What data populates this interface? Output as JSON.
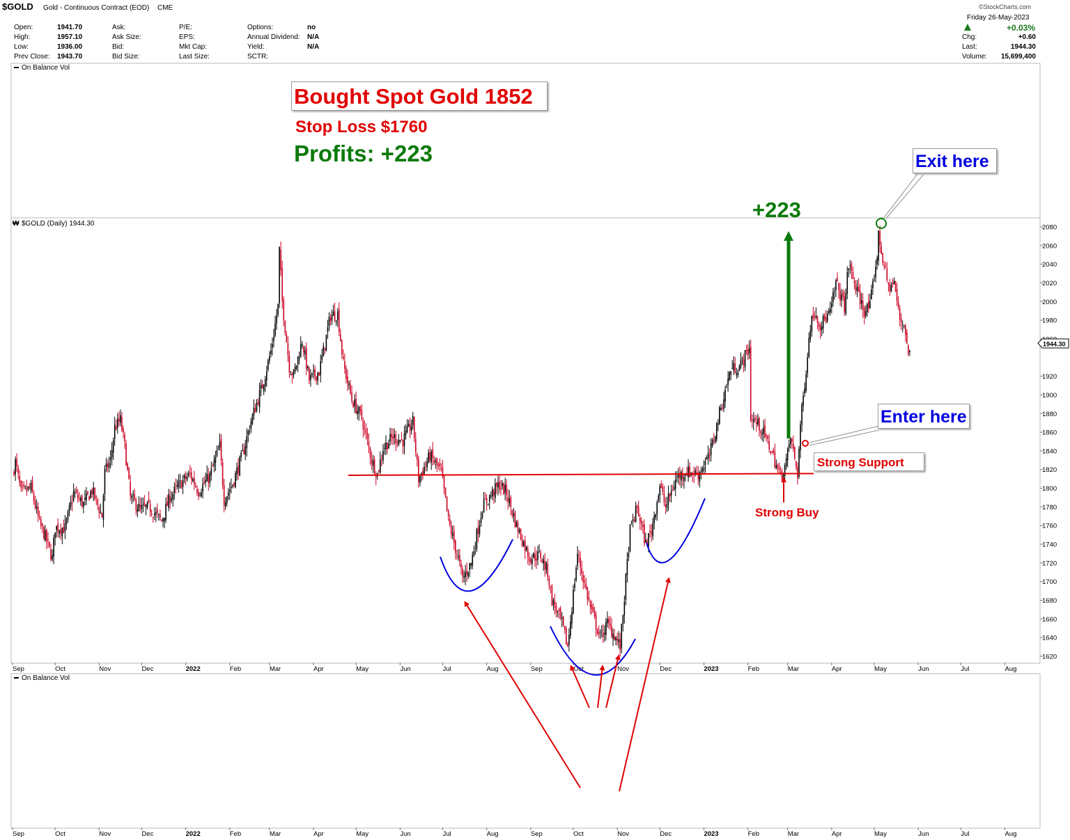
{
  "header": {
    "symbol": "$GOLD",
    "description": "Gold - Continuous Contract (EOD)",
    "exchange": "CME",
    "watermark": "©StockCharts.com",
    "date": "Friday  26-May-2023",
    "pct_change": "+0.03%",
    "quote": [
      {
        "label": "Open:",
        "value": "1941.70"
      },
      {
        "label": "High:",
        "value": "1957.10"
      },
      {
        "label": "Low:",
        "value": "1936.00"
      },
      {
        "label": "Prev Close:",
        "value": "1943.70"
      }
    ],
    "ask_col": [
      "Ask:",
      "Ask Size:",
      "Bid:",
      "Bid Size:"
    ],
    "pe_col": [
      "P/E:",
      "EPS:",
      "Mkt Cap:",
      "Last Size:"
    ],
    "options_col": [
      {
        "label": "Options:",
        "value": "no"
      },
      {
        "label": "Annual Dividend:",
        "value": "N/A"
      },
      {
        "label": "Yield:",
        "value": "N/A"
      },
      {
        "label": "SCTR:",
        "value": ""
      }
    ],
    "right_col": [
      {
        "label": "Chg:",
        "value": "+0.60"
      },
      {
        "label": "Last:",
        "value": "1944.30"
      },
      {
        "label": "Volume:",
        "value": "15,699,400"
      }
    ]
  },
  "panels": {
    "top_indicator": "On Balance Vol",
    "price_legend": "$GOLD (Daily) 1944.30",
    "bottom_indicator": "On Balance Vol"
  },
  "annotations": {
    "bought": "Bought Spot Gold 1852",
    "stop_loss": "Stop Loss $1760",
    "profits": "Profits: +223",
    "gain": "+223",
    "exit": "Exit here",
    "enter": "Enter here",
    "support": "Strong Support",
    "strong_buy": "Strong Buy"
  },
  "colors": {
    "up_candle": "#000000",
    "down_candle": "#cc0022",
    "annotation_red": "#e00000",
    "annotation_green": "#0a7a0a",
    "annotation_blue": "#0000e0",
    "support_line": "#e00000"
  },
  "chart_data": {
    "type": "line",
    "style": "daily candlesticks",
    "x_tick_labels": [
      "Sep",
      "Oct",
      "Nov",
      "Dec",
      "2022",
      "Feb",
      "Mar",
      "Apr",
      "May",
      "Jun",
      "Jul",
      "Aug",
      "Sep",
      "Oct",
      "Nov",
      "Dec",
      "2023",
      "Feb",
      "Mar",
      "Apr",
      "May",
      "Jun",
      "Jul",
      "Aug"
    ],
    "y_tick_labels": [
      "1620",
      "1640",
      "1660",
      "1680",
      "1700",
      "1720",
      "1740",
      "1760",
      "1780",
      "1800",
      "1820",
      "1840",
      "1860",
      "1880",
      "1900",
      "1920",
      "1940",
      "1960",
      "1980",
      "2000",
      "2020",
      "2040",
      "2060",
      "2080"
    ],
    "ylim": [
      1615,
      2090
    ],
    "last_price_label": "1944.30",
    "grid": false,
    "support_level": 1815,
    "series": [
      {
        "values": [
          [
            "2021-09-01",
            1815
          ],
          [
            "2021-09-03",
            1828
          ],
          [
            "2021-09-07",
            1795
          ],
          [
            "2021-09-14",
            1800
          ],
          [
            "2021-09-20",
            1762
          ],
          [
            "2021-09-24",
            1748
          ],
          [
            "2021-09-29",
            1725
          ],
          [
            "2021-10-01",
            1758
          ],
          [
            "2021-10-08",
            1757
          ],
          [
            "2021-10-14",
            1795
          ],
          [
            "2021-10-21",
            1783
          ],
          [
            "2021-10-27",
            1798
          ],
          [
            "2021-11-03",
            1770
          ],
          [
            "2021-11-05",
            1817
          ],
          [
            "2021-11-09",
            1830
          ],
          [
            "2021-11-12",
            1865
          ],
          [
            "2021-11-16",
            1873
          ],
          [
            "2021-11-19",
            1845
          ],
          [
            "2021-11-23",
            1790
          ],
          [
            "2021-11-30",
            1777
          ],
          [
            "2021-12-06",
            1780
          ],
          [
            "2021-12-15",
            1765
          ],
          [
            "2021-12-21",
            1791
          ],
          [
            "2021-12-29",
            1806
          ],
          [
            "2022-01-04",
            1815
          ],
          [
            "2022-01-10",
            1797
          ],
          [
            "2022-01-18",
            1813
          ],
          [
            "2022-01-25",
            1845
          ],
          [
            "2022-01-28",
            1788
          ],
          [
            "2022-02-03",
            1805
          ],
          [
            "2022-02-10",
            1836
          ],
          [
            "2022-02-16",
            1872
          ],
          [
            "2022-02-24",
            1910
          ],
          [
            "2022-03-02",
            1947
          ],
          [
            "2022-03-07",
            1995
          ],
          [
            "2022-03-08",
            2055
          ],
          [
            "2022-03-10",
            2000
          ],
          [
            "2022-03-15",
            1930
          ],
          [
            "2022-03-18",
            1921
          ],
          [
            "2022-03-24",
            1958
          ],
          [
            "2022-03-29",
            1916
          ],
          [
            "2022-04-05",
            1925
          ],
          [
            "2022-04-08",
            1947
          ],
          [
            "2022-04-13",
            1985
          ],
          [
            "2022-04-18",
            1987
          ],
          [
            "2022-04-22",
            1933
          ],
          [
            "2022-04-28",
            1895
          ],
          [
            "2022-05-05",
            1875
          ],
          [
            "2022-05-12",
            1830
          ],
          [
            "2022-05-16",
            1815
          ],
          [
            "2022-05-20",
            1843
          ],
          [
            "2022-05-27",
            1855
          ],
          [
            "2022-06-03",
            1851
          ],
          [
            "2022-06-10",
            1871
          ],
          [
            "2022-06-14",
            1810
          ],
          [
            "2022-06-22",
            1835
          ],
          [
            "2022-06-30",
            1817
          ],
          [
            "2022-07-05",
            1765
          ],
          [
            "2022-07-12",
            1724
          ],
          [
            "2022-07-15",
            1703
          ],
          [
            "2022-07-21",
            1720
          ],
          [
            "2022-07-29",
            1780
          ],
          [
            "2022-08-05",
            1795
          ],
          [
            "2022-08-10",
            1804
          ],
          [
            "2022-08-15",
            1795
          ],
          [
            "2022-08-22",
            1760
          ],
          [
            "2022-08-31",
            1726
          ],
          [
            "2022-09-08",
            1728
          ],
          [
            "2022-09-13",
            1710
          ],
          [
            "2022-09-16",
            1680
          ],
          [
            "2022-09-23",
            1655
          ],
          [
            "2022-09-27",
            1630
          ],
          [
            "2022-10-04",
            1730
          ],
          [
            "2022-10-07",
            1710
          ],
          [
            "2022-10-13",
            1672
          ],
          [
            "2022-10-20",
            1640
          ],
          [
            "2022-10-25",
            1655
          ],
          [
            "2022-10-31",
            1640
          ],
          [
            "2022-11-03",
            1630
          ],
          [
            "2022-11-10",
            1755
          ],
          [
            "2022-11-15",
            1779
          ],
          [
            "2022-11-21",
            1740
          ],
          [
            "2022-11-25",
            1755
          ],
          [
            "2022-12-01",
            1803
          ],
          [
            "2022-12-05",
            1780
          ],
          [
            "2022-12-13",
            1812
          ],
          [
            "2022-12-20",
            1818
          ],
          [
            "2022-12-28",
            1815
          ],
          [
            "2023-01-05",
            1835
          ],
          [
            "2023-01-12",
            1880
          ],
          [
            "2023-01-20",
            1928
          ],
          [
            "2023-01-26",
            1930
          ],
          [
            "2023-02-02",
            1950
          ],
          [
            "2023-02-03",
            1876
          ],
          [
            "2023-02-10",
            1865
          ],
          [
            "2023-02-17",
            1842
          ],
          [
            "2023-02-24",
            1812
          ],
          [
            "2023-02-28",
            1828
          ],
          [
            "2023-03-03",
            1855
          ],
          [
            "2023-03-08",
            1815
          ],
          [
            "2023-03-10",
            1868
          ],
          [
            "2023-03-13",
            1913
          ],
          [
            "2023-03-17",
            1975
          ],
          [
            "2023-03-20",
            1990
          ],
          [
            "2023-03-24",
            1975
          ],
          [
            "2023-03-31",
            1988
          ],
          [
            "2023-04-04",
            2020
          ],
          [
            "2023-04-10",
            1995
          ],
          [
            "2023-04-13",
            2040
          ],
          [
            "2023-04-19",
            2010
          ],
          [
            "2023-04-24",
            1990
          ],
          [
            "2023-04-28",
            1995
          ],
          [
            "2023-05-03",
            2050
          ],
          [
            "2023-05-04",
            2070
          ],
          [
            "2023-05-09",
            2030
          ],
          [
            "2023-05-11",
            2015
          ],
          [
            "2023-05-15",
            2020
          ],
          [
            "2023-05-19",
            1980
          ],
          [
            "2023-05-22",
            1977
          ],
          [
            "2023-05-25",
            1945
          ],
          [
            "2023-05-26",
            1944.3
          ]
        ]
      }
    ]
  }
}
